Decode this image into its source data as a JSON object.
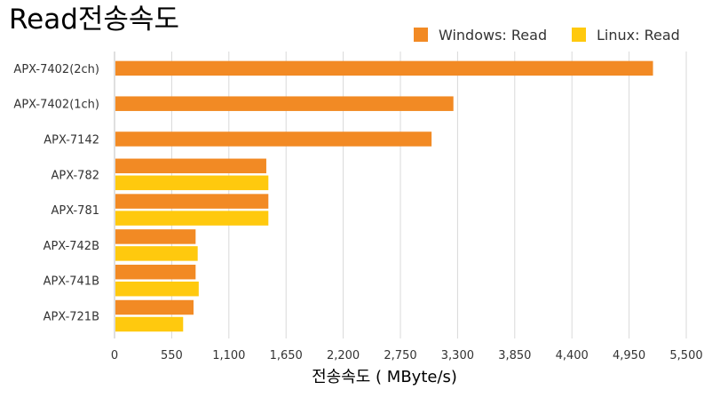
{
  "chart_data": {
    "type": "bar",
    "orientation": "horizontal",
    "title": "Read전송속도",
    "xlabel": "전송속도 ( MByte/s)",
    "ylabel": "",
    "categories": [
      "APX-7402(2ch)",
      "APX-7402(1ch)",
      "APX-7142",
      "APX-782",
      "APX-781",
      "APX-742B",
      "APX-741B",
      "APX-721B"
    ],
    "series": [
      {
        "name": "Windows: Read",
        "color": "#f28a24",
        "values": [
          5180,
          3260,
          3050,
          1460,
          1480,
          780,
          780,
          760
        ]
      },
      {
        "name": "Linux: Read",
        "color": "#ffc90e",
        "values": [
          null,
          null,
          null,
          1480,
          1480,
          800,
          810,
          660
        ]
      }
    ],
    "xlim": [
      0,
      5500
    ],
    "xticks": [
      "0",
      "550",
      "1,100",
      "1,650",
      "2,200",
      "2,750",
      "3,300",
      "3,850",
      "4,400",
      "4,950",
      "5,500"
    ],
    "xtick_values": [
      0,
      550,
      1100,
      1650,
      2200,
      2750,
      3300,
      3850,
      4400,
      4950,
      5500
    ],
    "grid": true,
    "legend_position": "top-right"
  }
}
